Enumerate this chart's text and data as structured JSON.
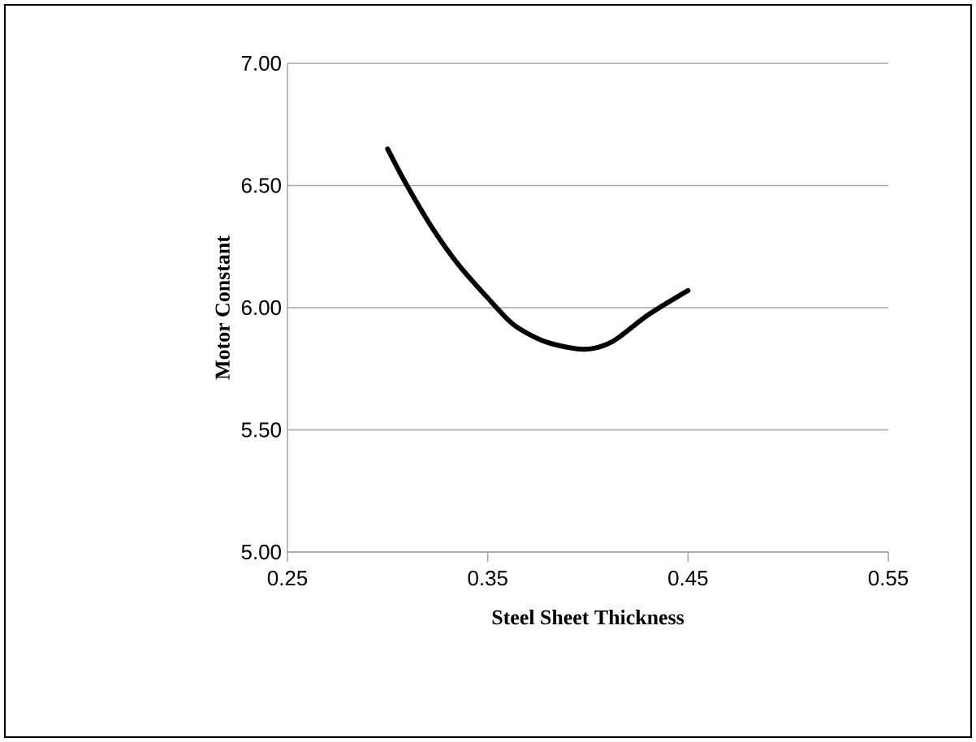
{
  "chart_data": {
    "type": "line",
    "xlabel": "Steel Sheet Thickness",
    "ylabel": "Motor Constant",
    "x": [
      0.3,
      0.309,
      0.322,
      0.335,
      0.35,
      0.363,
      0.379,
      0.398,
      0.412,
      0.43,
      0.45
    ],
    "series": [
      {
        "color": "#000000",
        "values": [
          6.65,
          6.51,
          6.33,
          6.18,
          6.04,
          5.93,
          5.86,
          5.83,
          5.86,
          5.97,
          6.07
        ]
      }
    ],
    "xlim": [
      0.25,
      0.55
    ],
    "xticks": [
      0.25,
      0.35,
      0.45,
      0.55
    ],
    "ylim": [
      5.0,
      7.0
    ],
    "yticks": [
      {
        "value": 5.0,
        "label": "5.00"
      },
      {
        "value": 5.5,
        "label": "5.50"
      },
      {
        "value": 6.0,
        "label": "6.00"
      },
      {
        "value": 6.5,
        "label": "6.50"
      },
      {
        "value": 7.0,
        "label": "7.00"
      }
    ],
    "grid": "y",
    "marker": "none",
    "line_style": "solid"
  }
}
